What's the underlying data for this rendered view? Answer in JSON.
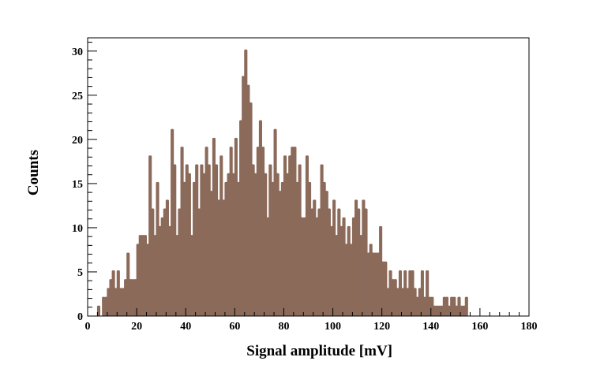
{
  "chart_data": {
    "type": "bar",
    "histogram": true,
    "bin_width": 1,
    "x_start": 0,
    "xlabel": "Signal amplitude [mV]",
    "ylabel": "Counts",
    "xlim": [
      0,
      180
    ],
    "ylim": [
      0,
      31.5
    ],
    "x_ticks": [
      0,
      20,
      40,
      60,
      80,
      100,
      120,
      140,
      160,
      180
    ],
    "y_ticks": [
      0,
      5,
      10,
      15,
      20,
      25,
      30
    ],
    "grid": false,
    "legend": "none",
    "bar_color": "#8b6a5a",
    "values": [
      0,
      0,
      0,
      0,
      1,
      0,
      2,
      2,
      3,
      4,
      5,
      3,
      5,
      3,
      3,
      4,
      7,
      4,
      4,
      4,
      8,
      9,
      9,
      9,
      8,
      18,
      12,
      9,
      15,
      10,
      11,
      12,
      13,
      10,
      21,
      17,
      9,
      12,
      19,
      15,
      17,
      16,
      9,
      15,
      17,
      12,
      17,
      16,
      19,
      17,
      14,
      20,
      17,
      13,
      18,
      13,
      15,
      16,
      19,
      16,
      20,
      15,
      22,
      27,
      30,
      26,
      24,
      17,
      16,
      19,
      22,
      19,
      16,
      11,
      17,
      15,
      21,
      16,
      14,
      15,
      18,
      16,
      18,
      19,
      19,
      15,
      17,
      11,
      11,
      18,
      15,
      12,
      13,
      11,
      12,
      17,
      15,
      14,
      12,
      10,
      13,
      9,
      12,
      10,
      11,
      8,
      10,
      8,
      11,
      13,
      12,
      9,
      13,
      12,
      7,
      8,
      7,
      7,
      7,
      10,
      6,
      6,
      3,
      5,
      4,
      4,
      3,
      5,
      3,
      5,
      3,
      5,
      5,
      3,
      2,
      3,
      5,
      2,
      5,
      2,
      2,
      1,
      1,
      1,
      1,
      2,
      2,
      1,
      2,
      2,
      1,
      2,
      1,
      1,
      2,
      0,
      0,
      0,
      0,
      0,
      0,
      0,
      0,
      0,
      0,
      0,
      0,
      0,
      0,
      0,
      0,
      0,
      0,
      0,
      0,
      0,
      0,
      0,
      0,
      0
    ]
  }
}
